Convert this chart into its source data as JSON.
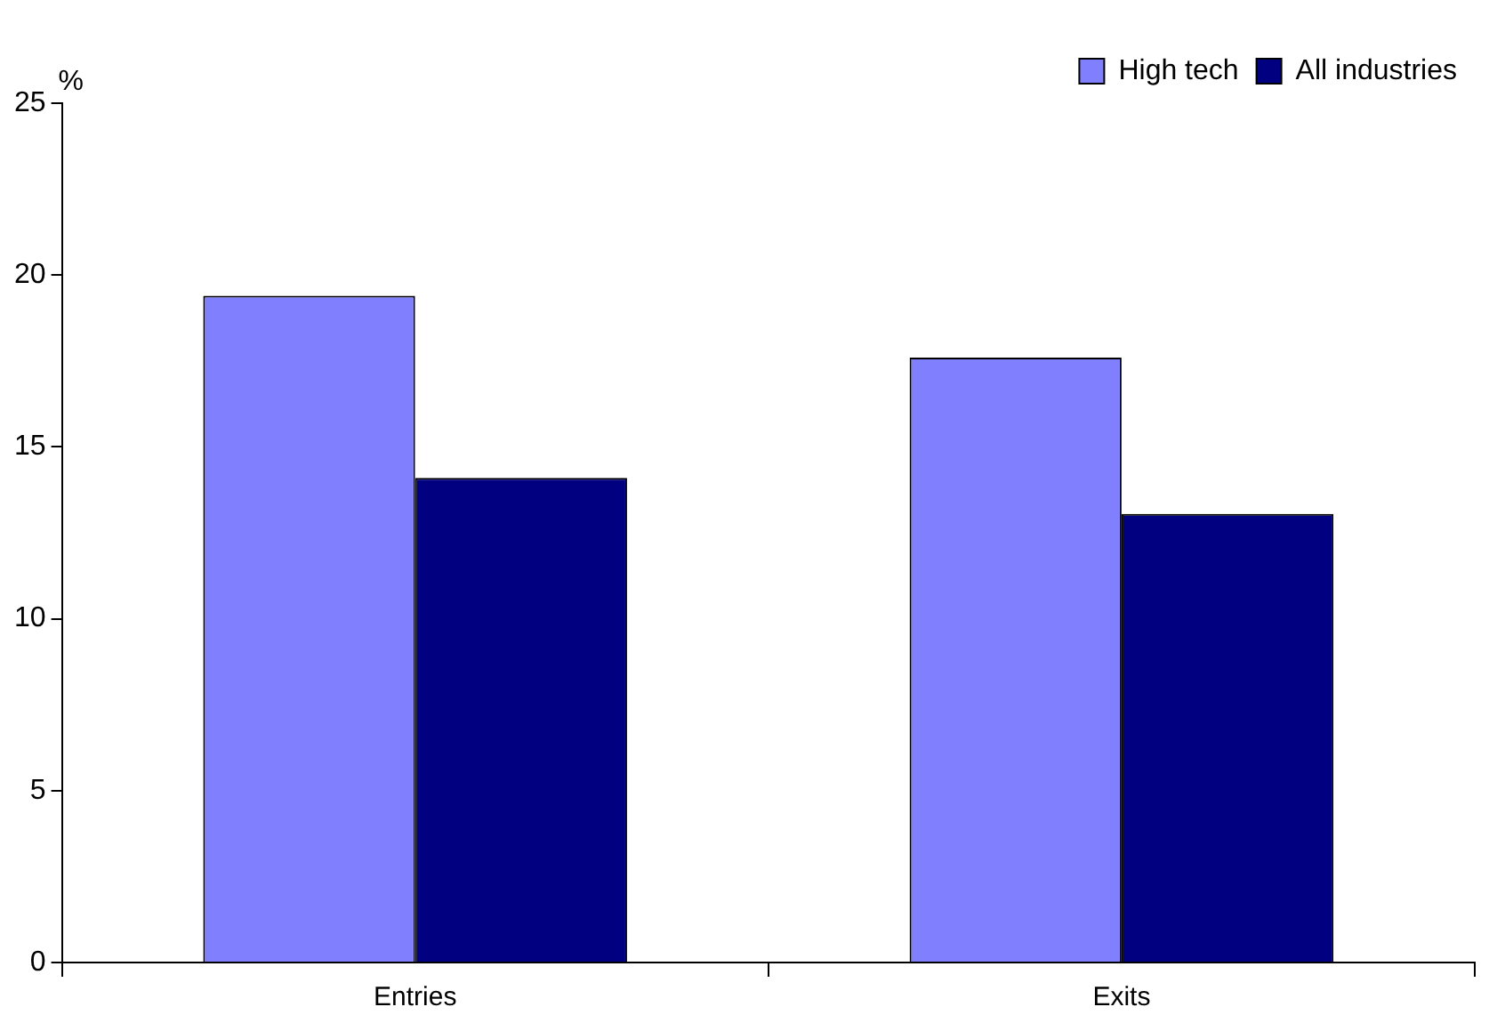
{
  "chart_data": {
    "type": "bar",
    "ylabel": "%",
    "categories": [
      "Entries",
      "Exits"
    ],
    "series": [
      {
        "name": "High tech",
        "color": "#8080ff",
        "values": [
          19.4,
          17.6
        ]
      },
      {
        "name": "All industries",
        "color": "#000080",
        "values": [
          14.1,
          13.05
        ]
      }
    ],
    "ylim": [
      0,
      25
    ],
    "yticks": [
      0,
      5,
      10,
      15,
      20,
      25
    ],
    "legend": "top right"
  }
}
